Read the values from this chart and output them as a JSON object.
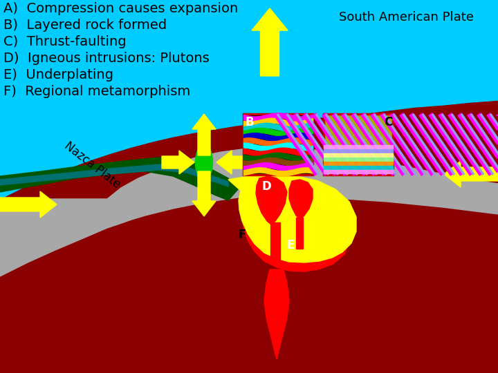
{
  "labels": [
    "A)  Compression causes expansion",
    "B)  Layered rock formed",
    "C)  Thrust-faulting",
    "D)  Igneous intrusions: Plutons",
    "E)  Underplating",
    "F)  Regional metamorphism"
  ],
  "south_american_plate_label": "South American Plate",
  "nazca_plate_label": "Nazca Plate",
  "colors": {
    "sky": "#00CCFF",
    "dark_red": "#8B0000",
    "bright_red": "#FF0000",
    "gray": "#A8A8A8",
    "dark_green": "#005500",
    "teal": "#007070",
    "yellow": "#FFFF00",
    "green_ellipse": "#00CC00",
    "black": "#000000",
    "white": "#FFFFFF"
  },
  "label_fontsize": 14,
  "plate_fontsize": 13
}
